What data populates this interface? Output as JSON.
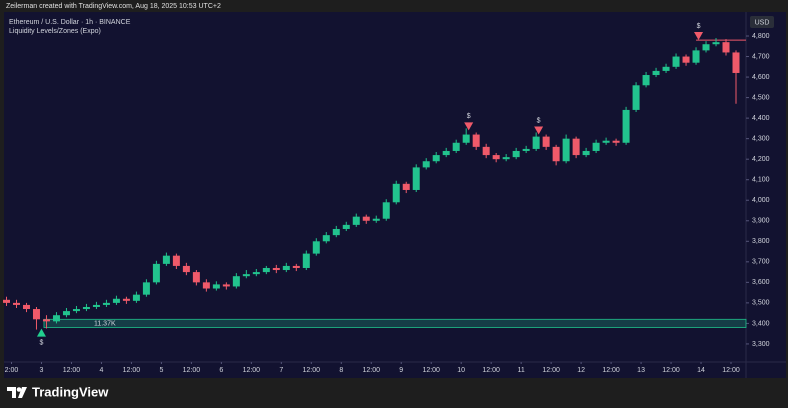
{
  "header": {
    "credit": "Zeilerman created with TradingView.com, Aug 18, 2025 10:53 UTC+2"
  },
  "footer": {
    "brand": "TradingView"
  },
  "chart_data": {
    "type": "candlestick",
    "title": "Ethereum / U.S. Dollar · 1h · BINANCE",
    "subtitle": "Liquidity Levels/Zones (Expo)",
    "currency": "USD",
    "up_color": "#22c38e",
    "down_color": "#f05a6a",
    "x": [
      -14,
      -10,
      -6,
      -2,
      2,
      6,
      10,
      14,
      18,
      22,
      26,
      30,
      34,
      38,
      42,
      46,
      50,
      54,
      58,
      62,
      66,
      70,
      74,
      78,
      82,
      86,
      90,
      94,
      98,
      102,
      106,
      110,
      114,
      118,
      122,
      126,
      130,
      134,
      138,
      142,
      146,
      150,
      154,
      158,
      162,
      166,
      170,
      174,
      178,
      182,
      186,
      190,
      194,
      198,
      202,
      206,
      210,
      214,
      218,
      222,
      226,
      230,
      234,
      238,
      242,
      246,
      250,
      254,
      258,
      262,
      266,
      270,
      274,
      278
    ],
    "open": [
      3515,
      3500,
      3490,
      3470,
      3420,
      3410,
      3440,
      3460,
      3470,
      3480,
      3490,
      3500,
      3520,
      3510,
      3540,
      3600,
      3690,
      3730,
      3680,
      3650,
      3600,
      3570,
      3590,
      3580,
      3630,
      3640,
      3650,
      3670,
      3660,
      3680,
      3670,
      3740,
      3800,
      3830,
      3860,
      3880,
      3920,
      3900,
      3910,
      3990,
      4080,
      4050,
      4160,
      4190,
      4220,
      4240,
      4280,
      4320,
      4260,
      4220,
      4200,
      4210,
      4240,
      4250,
      4310,
      4260,
      4190,
      4300,
      4220,
      4240,
      4280,
      4290,
      4280,
      4440,
      4560,
      4610,
      4630,
      4650,
      4700,
      4670,
      4730,
      4760,
      4770,
      4720
    ],
    "high": [
      3530,
      3515,
      3500,
      3480,
      3440,
      3455,
      3475,
      3485,
      3495,
      3505,
      3515,
      3535,
      3530,
      3555,
      3615,
      3705,
      3745,
      3740,
      3695,
      3660,
      3615,
      3605,
      3600,
      3645,
      3660,
      3665,
      3680,
      3685,
      3695,
      3690,
      3755,
      3815,
      3845,
      3875,
      3895,
      3935,
      3930,
      3925,
      4005,
      4095,
      4090,
      4175,
      4205,
      4235,
      4255,
      4295,
      4350,
      4330,
      4275,
      4230,
      4225,
      4255,
      4265,
      4330,
      4320,
      4270,
      4320,
      4310,
      4255,
      4295,
      4305,
      4300,
      4455,
      4575,
      4625,
      4645,
      4665,
      4715,
      4710,
      4745,
      4775,
      4790,
      4785,
      4730
    ],
    "low": [
      3485,
      3475,
      3455,
      3370,
      3375,
      3400,
      3430,
      3450,
      3460,
      3470,
      3480,
      3490,
      3495,
      3500,
      3530,
      3590,
      3680,
      3665,
      3635,
      3585,
      3555,
      3560,
      3565,
      3570,
      3620,
      3630,
      3640,
      3645,
      3650,
      3655,
      3660,
      3730,
      3790,
      3820,
      3850,
      3870,
      3885,
      3890,
      3900,
      3980,
      4035,
      4040,
      4150,
      4180,
      4210,
      4230,
      4270,
      4245,
      4205,
      4185,
      4190,
      4200,
      4230,
      4240,
      4245,
      4170,
      4180,
      4205,
      4210,
      4230,
      4270,
      4265,
      4270,
      4430,
      4550,
      4600,
      4620,
      4640,
      4655,
      4660,
      4720,
      4750,
      4705,
      4470
    ],
    "close": [
      3500,
      3490,
      3470,
      3420,
      3410,
      3440,
      3460,
      3470,
      3480,
      3490,
      3500,
      3520,
      3510,
      3540,
      3600,
      3690,
      3730,
      3680,
      3650,
      3600,
      3570,
      3590,
      3580,
      3630,
      3640,
      3650,
      3670,
      3660,
      3680,
      3670,
      3740,
      3800,
      3830,
      3860,
      3880,
      3920,
      3900,
      3910,
      3990,
      4080,
      4050,
      4160,
      4190,
      4220,
      4240,
      4280,
      4320,
      4260,
      4220,
      4200,
      4210,
      4240,
      4250,
      4310,
      4260,
      4190,
      4300,
      4220,
      4240,
      4280,
      4290,
      4280,
      4440,
      4560,
      4610,
      4630,
      4650,
      4700,
      4670,
      4730,
      4760,
      4770,
      4720,
      4620
    ],
    "xlim": [
      -15,
      282
    ],
    "ylim": [
      3212,
      4917
    ],
    "grid": false,
    "xticks": [
      {
        "value": -12,
        "label": "2:00"
      },
      {
        "value": 0,
        "label": "3"
      },
      {
        "value": 12,
        "label": "12:00"
      },
      {
        "value": 24,
        "label": "4"
      },
      {
        "value": 36,
        "label": "12:00"
      },
      {
        "value": 48,
        "label": "5"
      },
      {
        "value": 60,
        "label": "12:00"
      },
      {
        "value": 72,
        "label": "6"
      },
      {
        "value": 84,
        "label": "12:00"
      },
      {
        "value": 96,
        "label": "7"
      },
      {
        "value": 108,
        "label": "12:00"
      },
      {
        "value": 120,
        "label": "8"
      },
      {
        "value": 132,
        "label": "12:00"
      },
      {
        "value": 144,
        "label": "9"
      },
      {
        "value": 156,
        "label": "12:00"
      },
      {
        "value": 168,
        "label": "10"
      },
      {
        "value": 180,
        "label": "12:00"
      },
      {
        "value": 192,
        "label": "11"
      },
      {
        "value": 204,
        "label": "12:00"
      },
      {
        "value": 216,
        "label": "12"
      },
      {
        "value": 228,
        "label": "12:00"
      },
      {
        "value": 240,
        "label": "13"
      },
      {
        "value": 252,
        "label": "12:00"
      },
      {
        "value": 264,
        "label": "14"
      },
      {
        "value": 276,
        "label": "12:00"
      }
    ],
    "yticks": [
      {
        "value": 3300,
        "label": "3,300"
      },
      {
        "value": 3400,
        "label": "3,400"
      },
      {
        "value": 3500,
        "label": "3,500"
      },
      {
        "value": 3600,
        "label": "3,600"
      },
      {
        "value": 3700,
        "label": "3,700"
      },
      {
        "value": 3800,
        "label": "3,800"
      },
      {
        "value": 3900,
        "label": "3,900"
      },
      {
        "value": 4000,
        "label": "4,000"
      },
      {
        "value": 4100,
        "label": "4,100"
      },
      {
        "value": 4200,
        "label": "4,200"
      },
      {
        "value": 4300,
        "label": "4,300"
      },
      {
        "value": 4400,
        "label": "4,400"
      },
      {
        "value": 4500,
        "label": "4,500"
      },
      {
        "value": 4600,
        "label": "4,600"
      },
      {
        "value": 4700,
        "label": "4,700"
      },
      {
        "value": 4800,
        "label": "4,800"
      }
    ],
    "zones": [
      {
        "label": "11.37K",
        "x_start": 1,
        "low": 3380,
        "high": 3420,
        "color": "#1fbf8a"
      }
    ],
    "levels": [
      {
        "price": 4780,
        "x_start": 262,
        "color": "#f05a6a"
      }
    ],
    "signals": [
      {
        "x": 0,
        "price": 3355,
        "direction": "up",
        "label": "$",
        "color": "#22d08f"
      },
      {
        "x": 171,
        "price": 4360,
        "direction": "down",
        "label": "$",
        "color": "#f05a6a"
      },
      {
        "x": 199,
        "price": 4340,
        "direction": "down",
        "label": "$",
        "color": "#f05a6a"
      },
      {
        "x": 263,
        "price": 4800,
        "direction": "down",
        "label": "$",
        "color": "#f05a6a"
      }
    ]
  }
}
